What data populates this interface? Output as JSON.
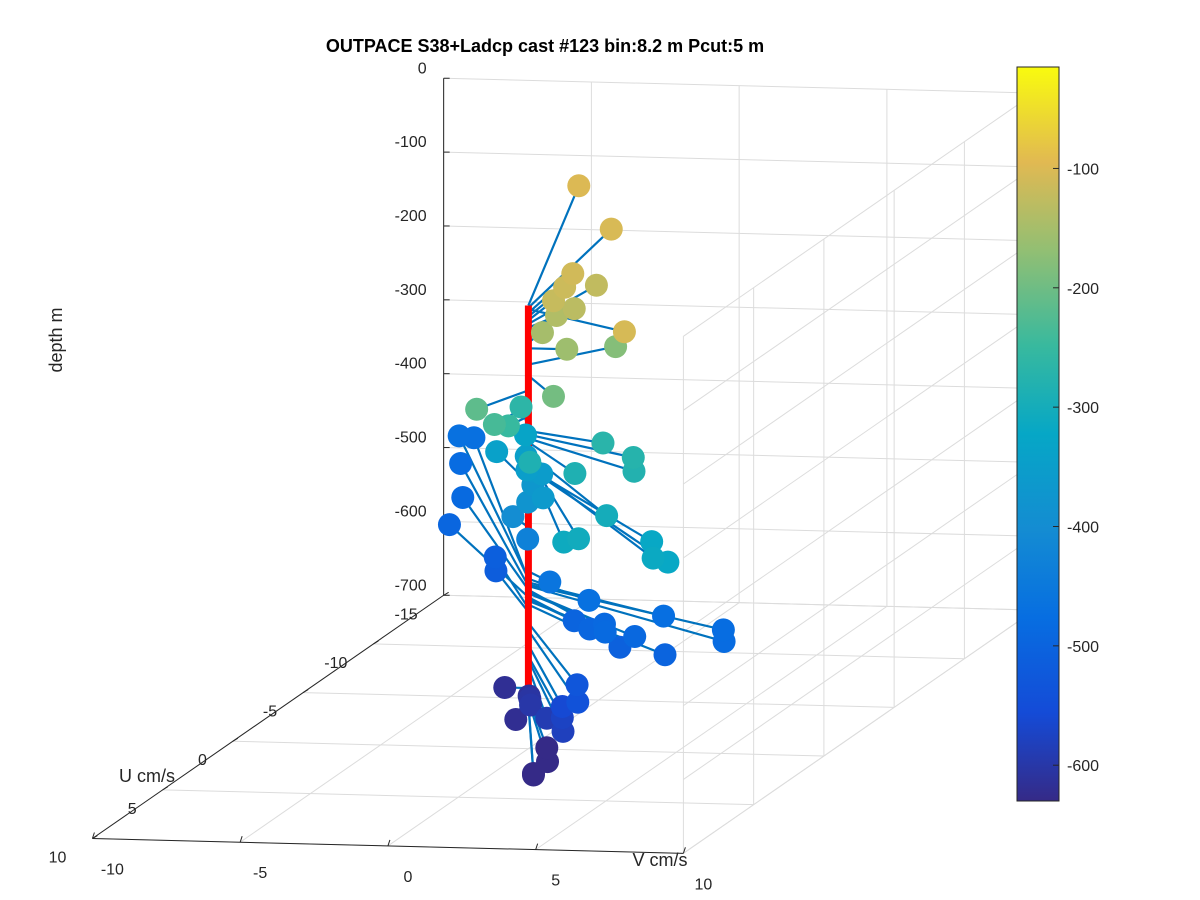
{
  "chart_data": {
    "type": "scatter",
    "projection": "3d",
    "title": "OUTPACE S38+Ladcp cast #123 bin:8.2 m  Pcut:5 m",
    "xlabel": "V cm/s",
    "ylabel": "U cm/s",
    "zlabel": "depth m",
    "xlim": [
      -10,
      10
    ],
    "ylim": [
      -15,
      10
    ],
    "zlim": [
      -700,
      0
    ],
    "x_ticks": [
      "-10",
      "-5",
      "0",
      "5",
      "10"
    ],
    "y_ticks": [
      "-15",
      "-10",
      "-5",
      "0",
      "5",
      "10"
    ],
    "z_ticks": [
      "0",
      "-100",
      "-200",
      "-300",
      "-400",
      "-500",
      "-600",
      "-700"
    ],
    "grid": true,
    "colorbar": {
      "colormap": "parula",
      "range": [
        -630,
        -15
      ],
      "ticks": [
        "-100",
        "-200",
        "-300",
        "-400",
        "-500",
        "-600"
      ]
    },
    "profile_line": {
      "color": "#ff0000",
      "depth_range": [
        -640,
        -100
      ]
    },
    "vector_color": "#0072bd",
    "series": [
      {
        "note": "velocity vectors from profile line, markers colored by depth",
        "points": [
          {
            "depth": -100,
            "u": -12,
            "v": -4.0
          },
          {
            "depth": -105,
            "u": 2,
            "v": 4.2
          },
          {
            "depth": -103,
            "u": -8,
            "v": -1.0
          },
          {
            "depth": -110,
            "u": -4,
            "v": -0.4
          },
          {
            "depth": -115,
            "u": -3,
            "v": -0.2
          },
          {
            "depth": -120,
            "u": -2,
            "v": -0.1
          },
          {
            "depth": -125,
            "u": -4,
            "v": 0.4
          },
          {
            "depth": -130,
            "u": -2,
            "v": 0.6
          },
          {
            "depth": -140,
            "u": -2,
            "v": 0.0
          },
          {
            "depth": -150,
            "u": -1,
            "v": 0.0
          },
          {
            "depth": -158,
            "u": 0,
            "v": 1.3
          },
          {
            "depth": -180,
            "u": -2,
            "v": 2.0
          },
          {
            "depth": -195,
            "u": 2,
            "v": 1.8
          },
          {
            "depth": -215,
            "u": 2,
            "v": -0.8
          },
          {
            "depth": -235,
            "u": 2,
            "v": -0.2
          },
          {
            "depth": -250,
            "u": 1,
            "v": -0.2
          },
          {
            "depth": -265,
            "u": -2,
            "v": -1.2
          },
          {
            "depth": -270,
            "u": 1,
            "v": 3.0
          },
          {
            "depth": -275,
            "u": 2,
            "v": 4.5
          },
          {
            "depth": -280,
            "u": 3,
            "v": 5.0
          },
          {
            "depth": -285,
            "u": 2,
            "v": 1.0
          },
          {
            "depth": -285,
            "u": 3,
            "v": 3.0
          },
          {
            "depth": -300,
            "u": 6,
            "v": 5.5
          },
          {
            "depth": -305,
            "u": 8,
            "v": 5.5
          },
          {
            "depth": -310,
            "u": 8,
            "v": 5.0
          },
          {
            "depth": -315,
            "u": 9,
            "v": 8.5
          },
          {
            "depth": -320,
            "u": 9,
            "v": 9.0
          },
          {
            "depth": -320,
            "u": 7,
            "v": 7.5
          },
          {
            "depth": -330,
            "u": -4,
            "v": -2.0
          },
          {
            "depth": -340,
            "u": -3,
            "v": -2.5
          },
          {
            "depth": -345,
            "u": -3,
            "v": -1.5
          },
          {
            "depth": -350,
            "u": -2,
            "v": -1.0
          },
          {
            "depth": -355,
            "u": -2,
            "v": -0.5
          },
          {
            "depth": -360,
            "u": 0,
            "v": 0.5
          },
          {
            "depth": -365,
            "u": -3,
            "v": -1.3
          },
          {
            "depth": -370,
            "u": -2,
            "v": -0.8
          },
          {
            "depth": -380,
            "u": -1,
            "v": -0.5
          },
          {
            "depth": -400,
            "u": -1,
            "v": -1.0
          },
          {
            "depth": -430,
            "u": -1,
            "v": -0.5
          },
          {
            "depth": -460,
            "u": 1,
            "v": 1.2
          },
          {
            "depth": -470,
            "u": 2,
            "v": 3.0
          },
          {
            "depth": -475,
            "u": 3,
            "v": 6.0
          },
          {
            "depth": -478,
            "u": 4,
            "v": 8.5
          },
          {
            "depth": -480,
            "u": 5,
            "v": 9.0
          },
          {
            "depth": -485,
            "u": 4,
            "v": 4.5
          },
          {
            "depth": -488,
            "u": 3,
            "v": 4.0
          },
          {
            "depth": -490,
            "u": 4,
            "v": 5.5
          },
          {
            "depth": -495,
            "u": 3,
            "v": 3.5
          },
          {
            "depth": -498,
            "u": 2,
            "v": 2.5
          },
          {
            "depth": -500,
            "u": 5,
            "v": 7.0
          },
          {
            "depth": -505,
            "u": 4,
            "v": 5.0
          },
          {
            "depth": -470,
            "u": -14,
            "v": -9.0
          },
          {
            "depth": -472,
            "u": -14,
            "v": -8.5
          },
          {
            "depth": -480,
            "u": -12,
            "v": -8.0
          },
          {
            "depth": -485,
            "u": -9,
            "v": -6.5
          },
          {
            "depth": -495,
            "u": -7,
            "v": -6.0
          },
          {
            "depth": -510,
            "u": -5,
            "v": -3.5
          },
          {
            "depth": -515,
            "u": -4,
            "v": -3.0
          },
          {
            "depth": -530,
            "u": 6,
            "v": 4.5
          },
          {
            "depth": -540,
            "u": 7,
            "v": 5.0
          },
          {
            "depth": -560,
            "u": 6,
            "v": 4.0
          },
          {
            "depth": -575,
            "u": 6,
            "v": 4.0
          },
          {
            "depth": -580,
            "u": 7,
            "v": 4.5
          },
          {
            "depth": -590,
            "u": 5,
            "v": 3.0
          },
          {
            "depth": -600,
            "u": 3,
            "v": 1.5
          },
          {
            "depth": -605,
            "u": 2,
            "v": 1.0
          },
          {
            "depth": -615,
            "u": 1,
            "v": 0.5
          },
          {
            "depth": -618,
            "u": 0,
            "v": -0.8
          },
          {
            "depth": -620,
            "u": 3,
            "v": 1.0
          },
          {
            "depth": -630,
            "u": 5,
            "v": 3.0
          },
          {
            "depth": -635,
            "u": 6,
            "v": 3.5
          },
          {
            "depth": -638,
            "u": 7,
            "v": 3.5
          },
          {
            "depth": -640,
            "u": 7,
            "v": 3.5
          }
        ]
      }
    ]
  }
}
